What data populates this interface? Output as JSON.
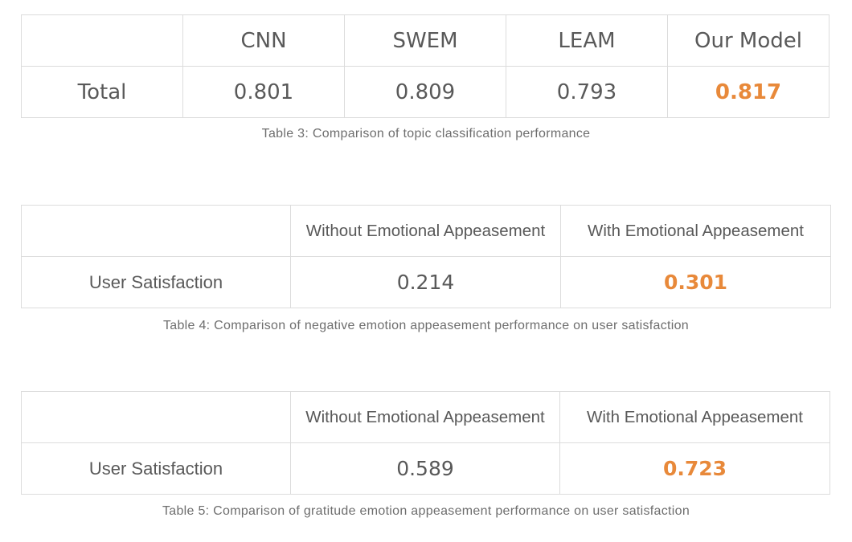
{
  "table3": {
    "headers": [
      "",
      "CNN",
      "SWEM",
      "LEAM",
      "Our Model"
    ],
    "row": {
      "label": "Total",
      "values": [
        "0.801",
        "0.809",
        "0.793",
        "0.817"
      ]
    },
    "caption": "Table 3: Comparison of topic classification performance"
  },
  "table4": {
    "headers": [
      "",
      "Without Emotional Appeasement",
      "With Emotional Appeasement"
    ],
    "row": {
      "label": "User Satisfaction",
      "values": [
        "0.214",
        "0.301"
      ]
    },
    "caption": "Table 4: Comparison of negative emotion appeasement performance on user satisfaction"
  },
  "table5": {
    "headers": [
      "",
      "Without Emotional Appeasement",
      "With Emotional Appeasement"
    ],
    "row": {
      "label": "User Satisfaction",
      "values": [
        "0.589",
        "0.723"
      ]
    },
    "caption": "Table 5: Comparison of gratitude emotion appeasement performance on user satisfaction"
  },
  "colors": {
    "highlight": "#e8893a",
    "text": "#595959",
    "border": "#dcdcdc",
    "caption": "#6e6e6e"
  }
}
